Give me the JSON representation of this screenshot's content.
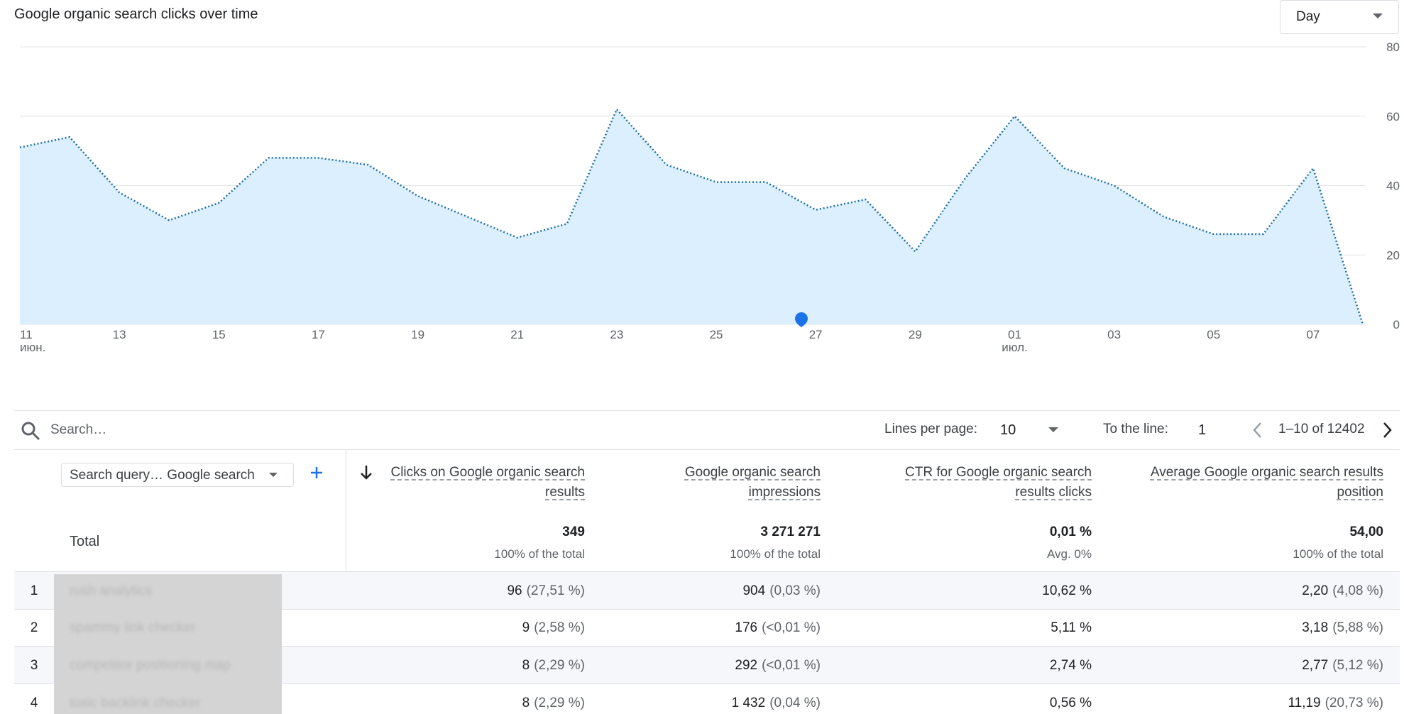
{
  "header": {
    "title": "Google organic search clicks over time",
    "granularity": "Day"
  },
  "chart_data": {
    "type": "area",
    "categories": [
      "11\nиюн.",
      null,
      "13",
      null,
      "15",
      null,
      "17",
      null,
      "19",
      null,
      "21",
      null,
      "23",
      null,
      "25",
      null,
      "27",
      null,
      "29",
      null,
      "01\nиюл.",
      null,
      "03",
      null,
      "05",
      null,
      "07",
      null
    ],
    "values": [
      51,
      54,
      38,
      30,
      35,
      48,
      48,
      46,
      37,
      31,
      25,
      29,
      62,
      46,
      41,
      41,
      33,
      36,
      21,
      42,
      60,
      45,
      40,
      31,
      26,
      26,
      45,
      0
    ],
    "color": "#1f6fa8",
    "fill": "#dcefff",
    "ylim": [
      0,
      80
    ],
    "yticks": [
      0,
      20,
      40,
      60,
      80
    ],
    "grid": true
  },
  "toolbar": {
    "search_placeholder": "Search…",
    "lines_per_page_label": "Lines per page:",
    "lines_per_page": 10,
    "to_line_label": "To the line:",
    "to_line": 1,
    "range": "1–10 of 12402"
  },
  "table": {
    "dimension": "Search query… Google search",
    "columns": [
      "Clicks on Google organic search\nresults",
      "Google organic search\nimpressions",
      "CTR for Google organic search\nresults clicks",
      "Average Google organic search results\nposition"
    ],
    "total": {
      "label": "Total",
      "cells": [
        {
          "value": "349",
          "note": "100% of the total"
        },
        {
          "value": "3 271 271",
          "note": "100% of the total"
        },
        {
          "value": "0,01 %",
          "note": "Avg. 0%"
        },
        {
          "value": "54,00",
          "note": "100% of the total"
        }
      ]
    },
    "rows": [
      {
        "index": 1,
        "query": "rush analytics",
        "cells": [
          {
            "value": "96",
            "share": "(27,51 %)"
          },
          {
            "value": "904",
            "share": "(0,03 %)"
          },
          {
            "value": "10,62 %"
          },
          {
            "value": "2,20",
            "share": "(4,08 %)"
          }
        ]
      },
      {
        "index": 2,
        "query": "spammy link checker",
        "cells": [
          {
            "value": "9",
            "share": "(2,58 %)"
          },
          {
            "value": "176",
            "share": "(<0,01 %)"
          },
          {
            "value": "5,11 %"
          },
          {
            "value": "3,18",
            "share": "(5,88 %)"
          }
        ]
      },
      {
        "index": 3,
        "query": "competitor positioning map",
        "cells": [
          {
            "value": "8",
            "share": "(2,29 %)"
          },
          {
            "value": "292",
            "share": "(<0,01 %)"
          },
          {
            "value": "2,74 %"
          },
          {
            "value": "2,77",
            "share": "(5,12 %)"
          }
        ]
      },
      {
        "index": 4,
        "query": "toxic backlink checker",
        "cells": [
          {
            "value": "8",
            "share": "(2,29 %)"
          },
          {
            "value": "1 432",
            "share": "(0,04 %)"
          },
          {
            "value": "0,56 %"
          },
          {
            "value": "11,19",
            "share": "(20,73 %)"
          }
        ]
      }
    ]
  }
}
